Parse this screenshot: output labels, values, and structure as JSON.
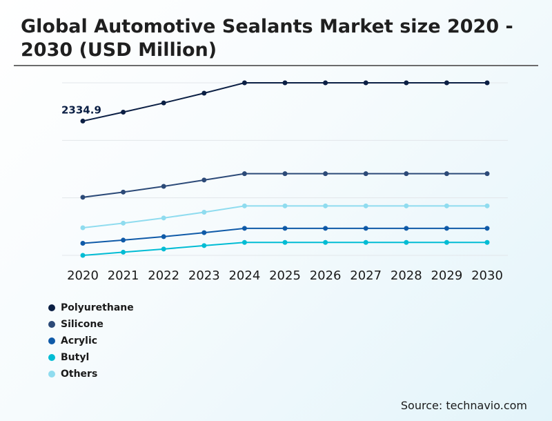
{
  "title": "Global Automotive Sealants Market size 2020 - 2030 (USD Million)",
  "source": "Source: technavio.com",
  "chart_data": {
    "type": "line",
    "title": "Global Automotive Sealants Market size 2020 - 2030 (USD Million)",
    "xlabel": "",
    "ylabel": "",
    "categories": [
      "2020",
      "2021",
      "2022",
      "2023",
      "2024",
      "2025",
      "2026",
      "2027",
      "2028",
      "2029",
      "2030"
    ],
    "ylim": [
      0,
      3000
    ],
    "grid": true,
    "legend_position": "bottom-left",
    "annotations": [
      {
        "series": "Polyurethane",
        "year": "2020",
        "text": "2334.9"
      }
    ],
    "series": [
      {
        "name": "Polyurethane",
        "color": "#0b1f44",
        "values": [
          2334.9,
          2490,
          2650,
          2820,
          3000,
          3000,
          3000,
          3000,
          3000,
          3000,
          3000
        ]
      },
      {
        "name": "Silicone",
        "color": "#2c4a78",
        "values": [
          1010,
          1100,
          1200,
          1310,
          1420,
          1420,
          1420,
          1420,
          1420,
          1420,
          1420
        ]
      },
      {
        "name": "Acrylic",
        "color": "#0f5aa8",
        "values": [
          210,
          265,
          325,
          395,
          470,
          470,
          470,
          470,
          470,
          470,
          470
        ]
      },
      {
        "name": "Butyl",
        "color": "#00bcd4",
        "values": [
          0,
          55,
          110,
          170,
          225,
          225,
          225,
          225,
          225,
          225,
          225
        ]
      },
      {
        "name": "Others",
        "color": "#8fdcef",
        "values": [
          480,
          560,
          650,
          750,
          860,
          860,
          860,
          860,
          860,
          860,
          860
        ]
      }
    ]
  }
}
